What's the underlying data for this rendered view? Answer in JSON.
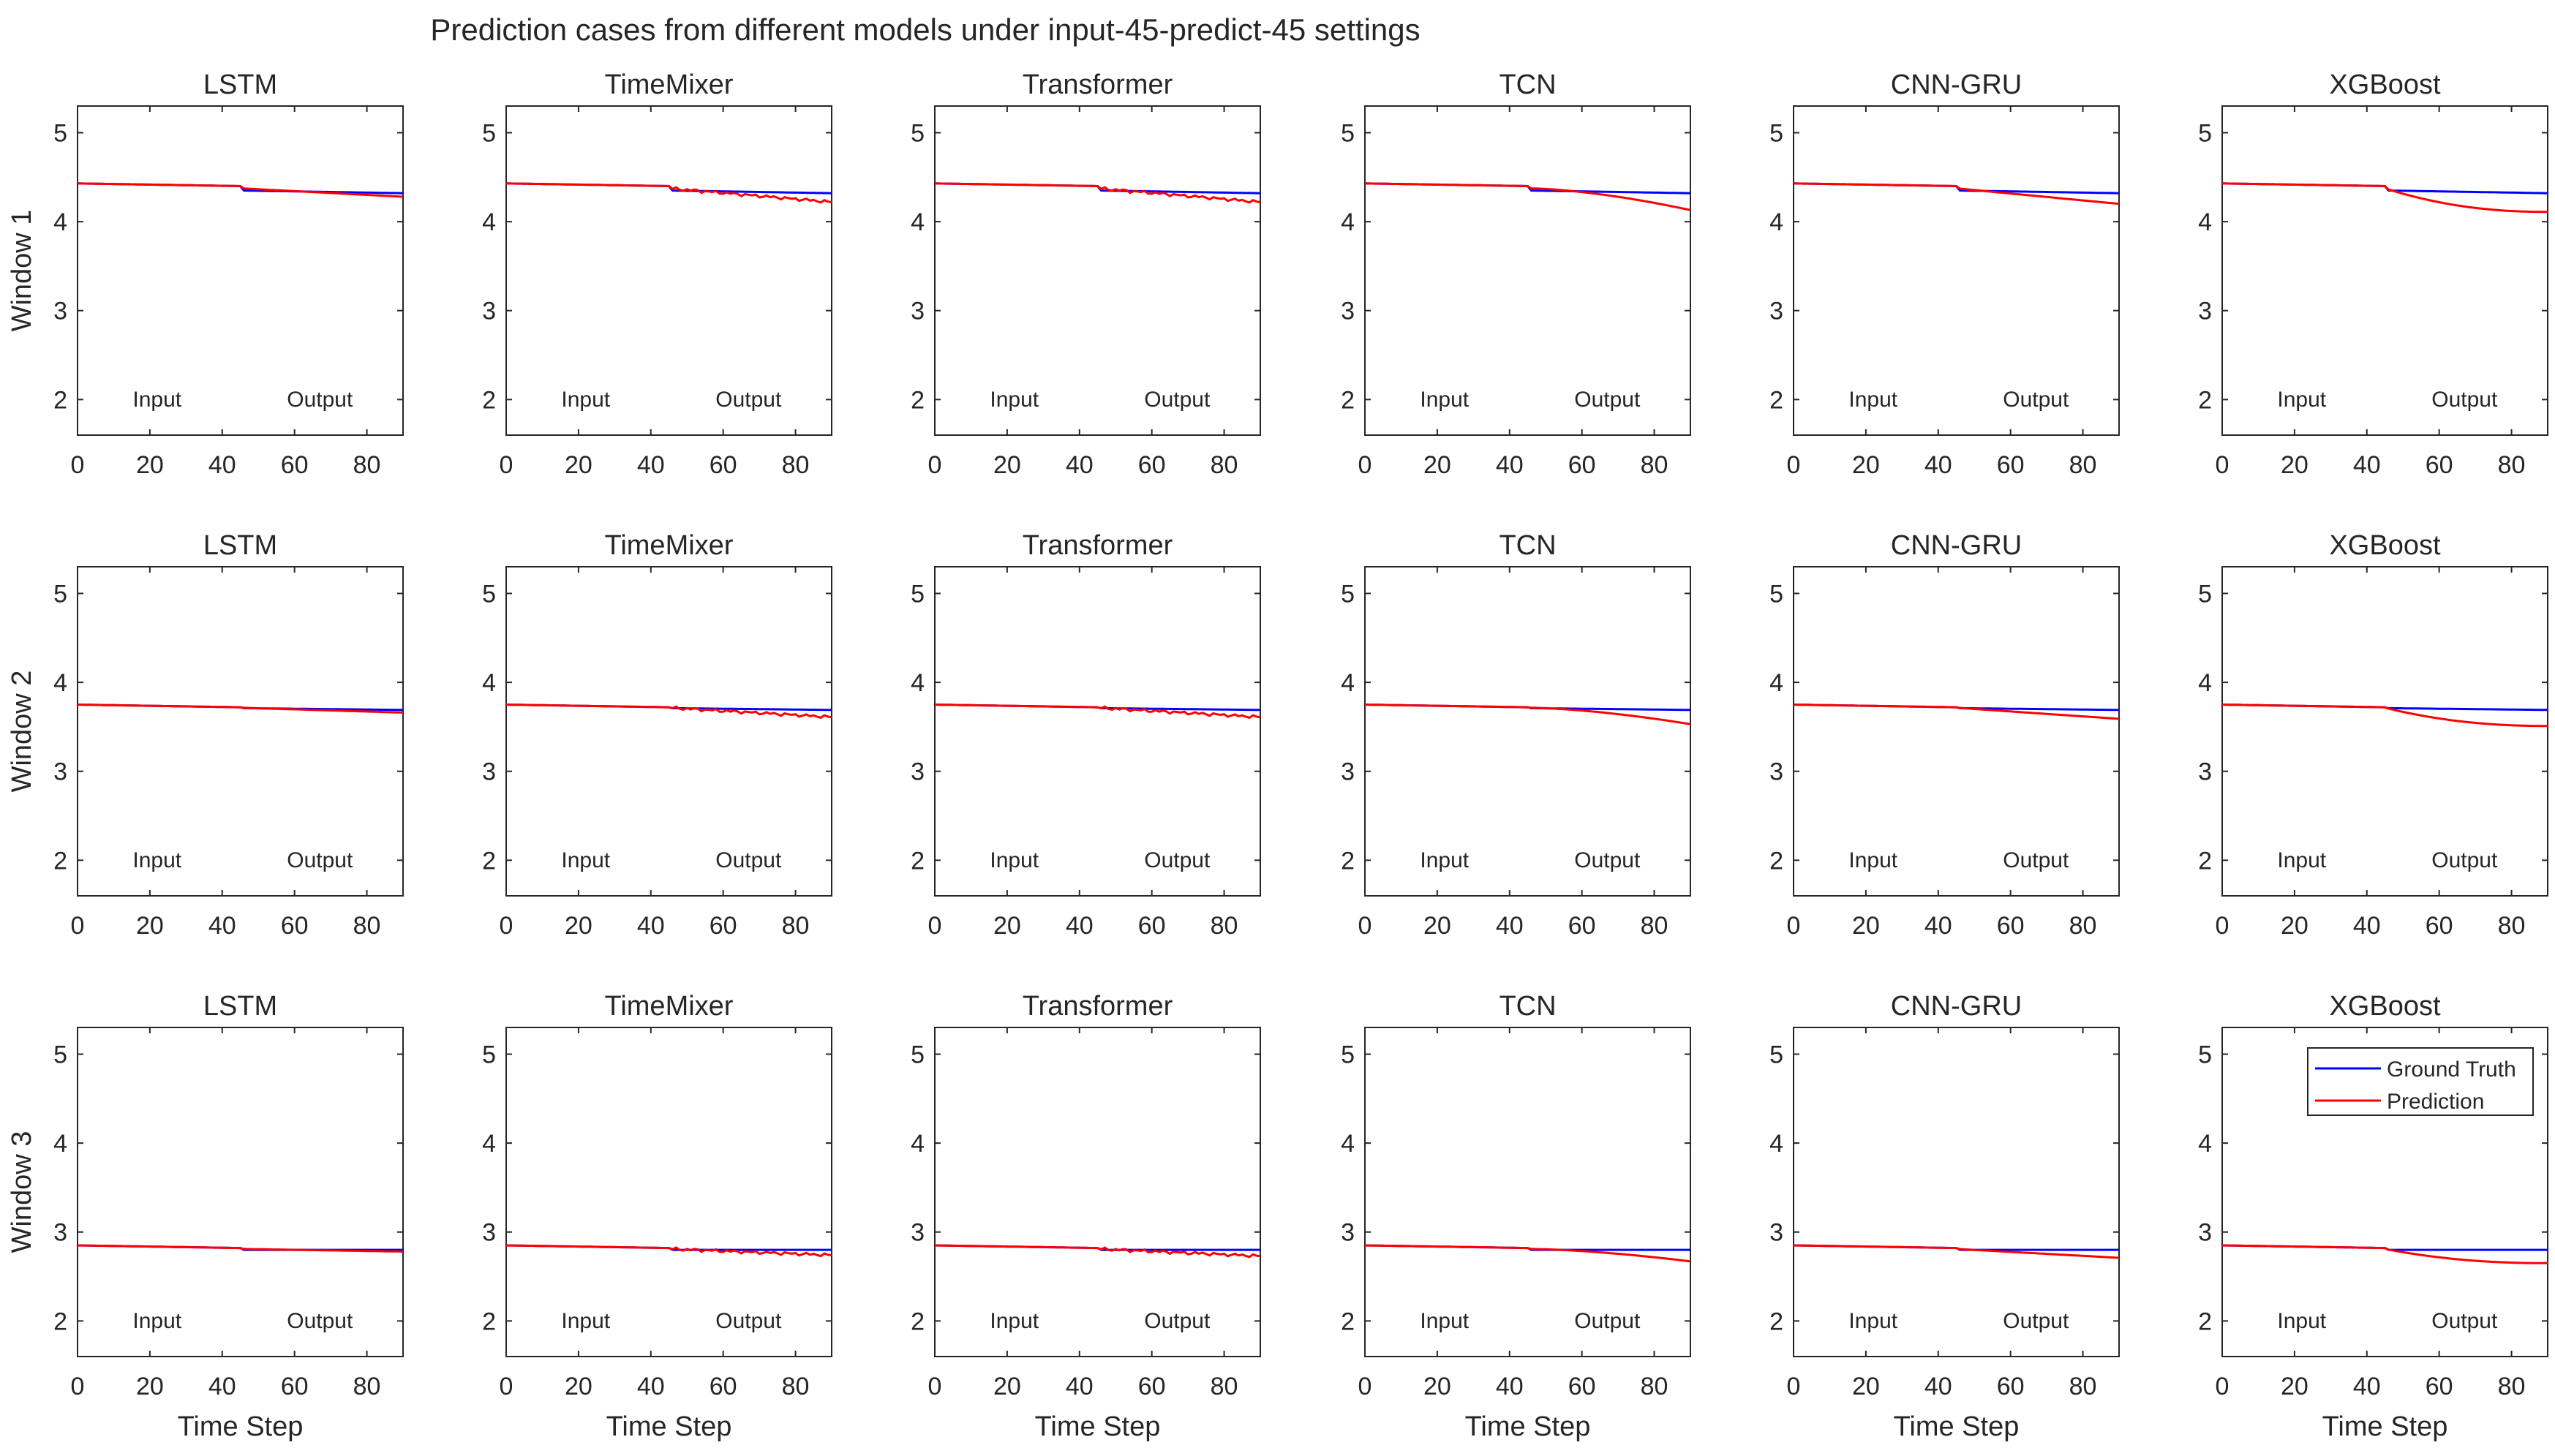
{
  "title": "Prediction cases from different models under input-45-predict-45 settings",
  "models": [
    "LSTM",
    "TimeMixer",
    "Transformer",
    "TCN",
    "CNN-GRU",
    "XGBoost"
  ],
  "windows": [
    "Window 1",
    "Window 2",
    "Window 3"
  ],
  "xlabel": "Time Step",
  "region_labels": {
    "input": "Input",
    "output": "Output"
  },
  "legend": {
    "position": "top-right of Window 3 / XGBoost panel",
    "entries": [
      {
        "label": "Ground Truth",
        "color": "#0000ff"
      },
      {
        "label": "Prediction",
        "color": "#ff0000"
      }
    ]
  },
  "colors": {
    "ground_truth": "#0000ff",
    "prediction": "#ff0000"
  },
  "chart_data": {
    "type": "line",
    "layout": "3 rows (windows) x 6 columns (models)",
    "xlim": [
      0,
      90
    ],
    "ylim": [
      1.6,
      5.3
    ],
    "xticks": [
      0,
      20,
      40,
      60,
      80
    ],
    "yticks": [
      2,
      3,
      4,
      5
    ],
    "input_length": 45,
    "predict_length": 45,
    "grid": false,
    "rows": [
      {
        "window": "Window 1",
        "ground_truth": {
          "start": 4.43,
          "at45": 4.4,
          "at46": 4.35,
          "end": 4.32
        },
        "prediction_end": {
          "LSTM": 4.28,
          "TimeMixer": 4.22,
          "Transformer": 4.22,
          "TCN": 4.13,
          "CNN-GRU": 4.2,
          "XGBoost": 4.11
        }
      },
      {
        "window": "Window 2",
        "ground_truth": {
          "start": 3.75,
          "at45": 3.72,
          "at46": 3.71,
          "end": 3.69
        },
        "prediction_end": {
          "LSTM": 3.66,
          "TimeMixer": 3.61,
          "Transformer": 3.61,
          "TCN": 3.53,
          "CNN-GRU": 3.59,
          "XGBoost": 3.51
        }
      },
      {
        "window": "Window 3",
        "ground_truth": {
          "start": 2.85,
          "at45": 2.82,
          "at46": 2.8,
          "end": 2.8
        },
        "prediction_end": {
          "LSTM": 2.78,
          "TimeMixer": 2.74,
          "Transformer": 2.73,
          "TCN": 2.67,
          "CNN-GRU": 2.71,
          "XGBoost": 2.65
        }
      }
    ],
    "prediction_shape": {
      "LSTM": "linear",
      "TimeMixer": "noisy",
      "Transformer": "noisy",
      "TCN": "curve-down",
      "CNN-GRU": "linear",
      "XGBoost": "curve-saturating"
    }
  }
}
